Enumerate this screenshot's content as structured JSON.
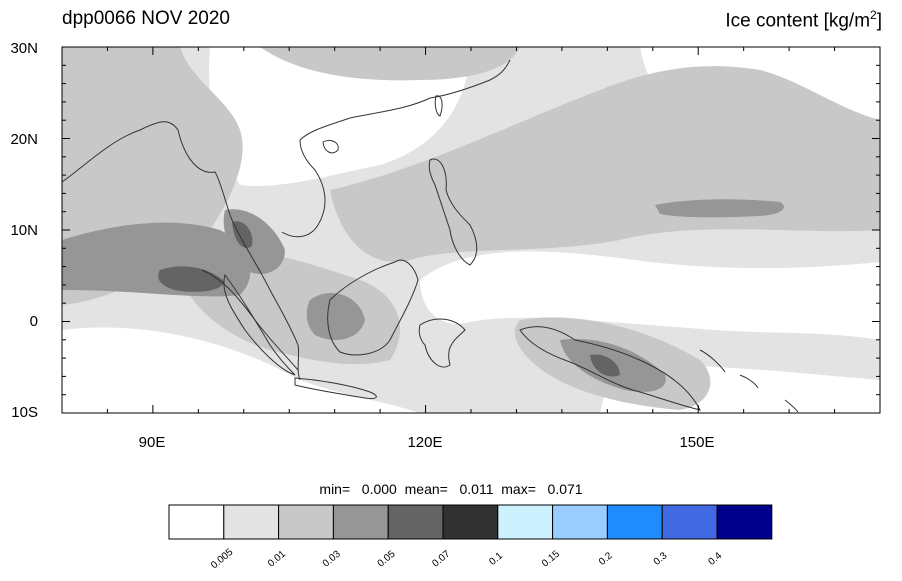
{
  "title_left": "dpp0066 NOV 2020",
  "title_right": {
    "text": "Ice content  [kg/m",
    "sup": "2",
    "close": "]"
  },
  "lat_labels": [
    "30N",
    "20N",
    "10N",
    "0",
    "10S"
  ],
  "lon_labels": [
    "90E",
    "120E",
    "150E"
  ],
  "stats": {
    "text": "min=   0.000  mean=   0.011  max=   0.071"
  },
  "colorbar": {
    "colors": [
      "#ffffff",
      "#e3e3e3",
      "#c8c8c8",
      "#969696",
      "#646464",
      "#323232",
      "#ccf2ff",
      "#99ccff",
      "#1e8cff",
      "#4169e1",
      "#00008c"
    ],
    "labels": [
      "0.005",
      "0.01",
      "0.03",
      "0.05",
      "0.07",
      "0.1",
      "0.15",
      "0.2",
      "0.3",
      "0.4"
    ]
  }
}
